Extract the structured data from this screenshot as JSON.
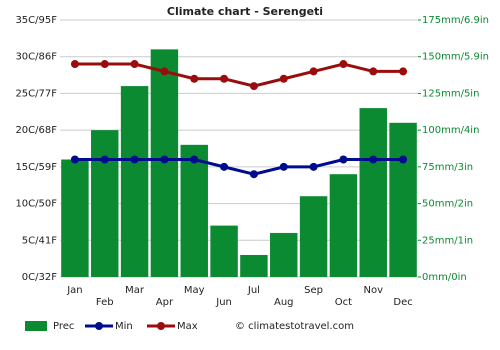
{
  "chart_data": {
    "type": "bar_line",
    "title": "Climate chart - Serengeti",
    "categories": [
      "Jan",
      "Feb",
      "Mar",
      "Apr",
      "May",
      "Jun",
      "Jul",
      "Aug",
      "Sep",
      "Oct",
      "Nov",
      "Dec"
    ],
    "series": [
      {
        "name": "Prec",
        "type": "bar",
        "axis": "y2",
        "color": "#0b8a32",
        "values": [
          80,
          100,
          130,
          155,
          90,
          35,
          15,
          30,
          55,
          70,
          115,
          105
        ]
      },
      {
        "name": "Min",
        "type": "line",
        "color": "#000c8f",
        "values": [
          16,
          16,
          16,
          16,
          16,
          15,
          14,
          15,
          15,
          16,
          16,
          16
        ]
      },
      {
        "name": "Max",
        "type": "line",
        "color": "#9b0d0d",
        "values": [
          29,
          29,
          29,
          28,
          27,
          27,
          26,
          27,
          28,
          29,
          28,
          28
        ]
      }
    ],
    "ylim": [
      0,
      35
    ],
    "yticks": [
      {
        "value": 0,
        "label": "0C/32F"
      },
      {
        "value": 5,
        "label": "5C/41F"
      },
      {
        "value": 10,
        "label": "10C/50F"
      },
      {
        "value": 15,
        "label": "15C/59F"
      },
      {
        "value": 20,
        "label": "20C/68F"
      },
      {
        "value": 25,
        "label": "25C/77F"
      },
      {
        "value": 30,
        "label": "30C/86F"
      },
      {
        "value": 35,
        "label": "35C/95F"
      }
    ],
    "y2lim": [
      0,
      175
    ],
    "y2ticks": [
      {
        "value": 0,
        "label": "0mm/0in"
      },
      {
        "value": 25,
        "label": "25mm/1in"
      },
      {
        "value": 50,
        "label": "50mm/2in"
      },
      {
        "value": 75,
        "label": "75mm/3in"
      },
      {
        "value": 100,
        "label": "100mm/4in"
      },
      {
        "value": 125,
        "label": "125mm/5in"
      },
      {
        "value": 150,
        "label": "150mm/5.9in"
      },
      {
        "value": 175,
        "label": "175mm/6.9in"
      }
    ],
    "grid": true,
    "credit": "© climatestotravel.com"
  }
}
